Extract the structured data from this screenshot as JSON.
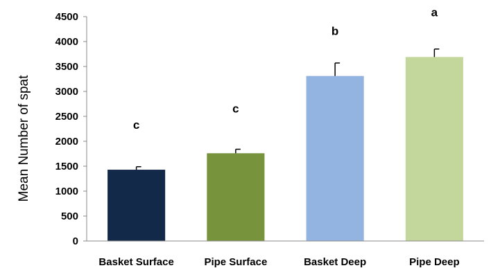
{
  "chart_data": {
    "type": "bar",
    "title": "",
    "xlabel": "",
    "ylabel": "Mean Number of spat",
    "ylim": [
      0,
      4500
    ],
    "yticks": [
      0,
      500,
      1000,
      1500,
      2000,
      2500,
      3000,
      3500,
      4000,
      4500
    ],
    "grid": false,
    "categories": [
      "Basket Surface",
      "Pipe Surface",
      "Basket Deep",
      "Pipe Deep"
    ],
    "values": [
      1430,
      1760,
      3310,
      3690
    ],
    "error_upper": [
      60,
      80,
      260,
      160
    ],
    "annotations": [
      "c",
      "c",
      "b",
      "a"
    ],
    "colors": [
      "#13294a",
      "#77933c",
      "#93b3e0",
      "#c3d69b"
    ]
  }
}
